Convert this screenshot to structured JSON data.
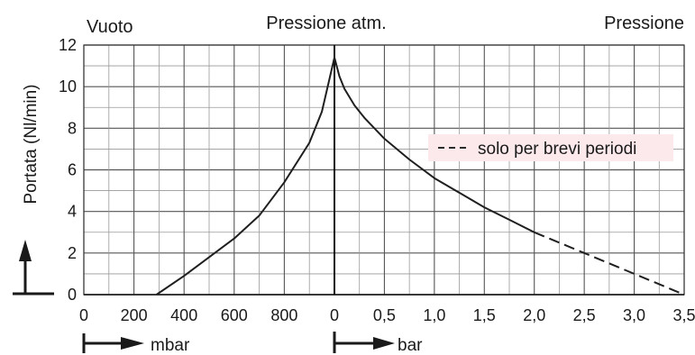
{
  "chart_data": {
    "type": "line",
    "header": {
      "left": "Vuoto",
      "center": "Pressione atm.",
      "right": "Pressione"
    },
    "ylabel": "Portata (Nl/min)",
    "ylim": [
      0,
      12
    ],
    "yticks": [
      "0",
      "2",
      "4",
      "6",
      "8",
      "10",
      "12"
    ],
    "grid": true,
    "vacuum_axis": {
      "unit": "mbar",
      "ticks": [
        "0",
        "200",
        "400",
        "600",
        "800"
      ],
      "range_mbar": [
        0,
        1000
      ]
    },
    "pressure_axis": {
      "unit": "bar",
      "ticks": [
        "0",
        "0,5",
        "1,0",
        "1,5",
        "2,0",
        "2,5",
        "3,0",
        "3,5"
      ],
      "range_bar": [
        0,
        3.5
      ]
    },
    "series": [
      {
        "segment": "vacuum",
        "x_mbar": [
          290,
          400,
          500,
          600,
          700,
          800,
          900,
          950,
          1000
        ],
        "y": [
          0,
          0.9,
          1.8,
          2.7,
          3.8,
          5.4,
          7.3,
          8.8,
          11.4
        ]
      },
      {
        "segment": "pressure",
        "x_bar": [
          0,
          0.05,
          0.1,
          0.2,
          0.3,
          0.5,
          0.75,
          1.0,
          1.25,
          1.5,
          1.75,
          2.0
        ],
        "y": [
          11.4,
          10.5,
          9.9,
          9.1,
          8.5,
          7.5,
          6.5,
          5.6,
          4.9,
          4.2,
          3.6,
          3.0
        ]
      },
      {
        "segment": "pressure-dashed",
        "name": "solo per brevi periodi",
        "x_bar": [
          2.0,
          2.5,
          3.0,
          3.5
        ],
        "y": [
          3.0,
          2.0,
          1.0,
          0
        ]
      }
    ],
    "legend": {
      "label": "solo per brevi periodi",
      "placement": "right"
    }
  }
}
